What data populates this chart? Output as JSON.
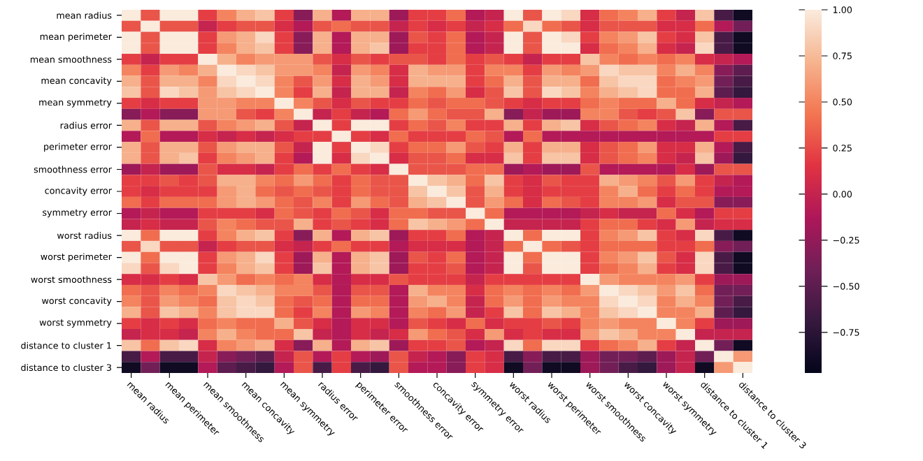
{
  "chart_data": {
    "type": "heatmap",
    "categories": [
      "mean radius",
      null,
      "mean perimeter",
      null,
      "mean smoothness",
      null,
      "mean concavity",
      null,
      "mean symmetry",
      null,
      "radius error",
      null,
      "perimeter error",
      null,
      "smoothness error",
      null,
      "concavity error",
      null,
      "symmetry error",
      null,
      "worst radius",
      null,
      "worst perimeter",
      null,
      "worst smoothness",
      null,
      "worst concavity",
      null,
      "worst symmetry",
      null,
      "distance to cluster 1",
      null,
      "distance to cluster 3"
    ],
    "y_categories": [
      "mean radius",
      null,
      "mean perimeter",
      null,
      "mean smoothness",
      null,
      "mean concavity",
      null,
      "mean symmetry",
      null,
      "radius error",
      null,
      "perimeter error",
      null,
      "smoothness error",
      null,
      "concavity error",
      null,
      "symmetry error",
      null,
      "worst radius",
      null,
      "worst perimeter",
      null,
      "worst smoothness",
      null,
      "worst concavity",
      null,
      "worst symmetry",
      null,
      "distance to cluster 1",
      null,
      "distance to cluster 3"
    ],
    "cells": [
      [
        1,
        0.3,
        1,
        1,
        0.2,
        0.5,
        0.7,
        0.8,
        0.2,
        -0.3,
        0.7,
        -0.1,
        0.7,
        0.7,
        -0.2,
        0.2,
        0.2,
        0.4,
        -0.1,
        0,
        1,
        0.3,
        1,
        0.9,
        0.1,
        0.4,
        0.5,
        0.7,
        0.2,
        0,
        0.8,
        -0.6,
        -0.9
      ],
      [
        0.3,
        1,
        0.3,
        0.3,
        0,
        0.2,
        0.3,
        0.3,
        0.1,
        -0.1,
        0.3,
        0.4,
        0.3,
        0.3,
        0,
        0.2,
        0.1,
        0.2,
        0,
        0.1,
        0.4,
        0.9,
        0.4,
        0.3,
        0.1,
        0.3,
        0.3,
        0.3,
        0.1,
        0.1,
        0.4,
        -0.1,
        -0.4
      ],
      [
        1,
        0.3,
        1,
        1,
        0.2,
        0.6,
        0.7,
        0.9,
        0.2,
        -0.3,
        0.7,
        -0.1,
        0.7,
        0.7,
        -0.2,
        0.3,
        0.2,
        0.4,
        -0.1,
        0,
        1,
        0.3,
        1,
        0.9,
        0.2,
        0.5,
        0.6,
        0.8,
        0.2,
        0.1,
        0.8,
        -0.6,
        -0.9
      ],
      [
        1,
        0.3,
        1,
        1,
        0.2,
        0.5,
        0.7,
        0.8,
        0.2,
        -0.3,
        0.7,
        -0.1,
        0.7,
        0.8,
        -0.2,
        0.2,
        0.2,
        0.4,
        -0.1,
        0,
        1,
        0.3,
        1,
        1,
        0.1,
        0.4,
        0.5,
        0.7,
        0.1,
        0,
        0.9,
        -0.6,
        -0.9
      ],
      [
        0.2,
        0,
        0.2,
        0.2,
        1,
        0.7,
        0.5,
        0.6,
        0.6,
        0.6,
        0.3,
        0.1,
        0.3,
        0.2,
        0.3,
        0.3,
        0.2,
        0.4,
        0.2,
        0.3,
        0.2,
        0,
        0.2,
        0.2,
        0.8,
        0.5,
        0.4,
        0.5,
        0.4,
        0.5,
        0.1,
        0,
        -0.1
      ],
      [
        0.5,
        0.2,
        0.6,
        0.5,
        0.7,
        1,
        0.9,
        0.8,
        0.6,
        0.6,
        0.5,
        0,
        0.6,
        0.5,
        0.1,
        0.7,
        0.6,
        0.6,
        0.2,
        0.5,
        0.5,
        0.2,
        0.6,
        0.5,
        0.6,
        0.9,
        0.8,
        0.8,
        0.5,
        0.7,
        0.5,
        -0.3,
        -0.5
      ],
      [
        0.7,
        0.3,
        0.7,
        0.7,
        0.5,
        0.9,
        1,
        0.9,
        0.5,
        0.3,
        0.6,
        0.1,
        0.7,
        0.6,
        0.1,
        0.7,
        0.7,
        0.7,
        0.2,
        0.4,
        0.7,
        0.3,
        0.7,
        0.7,
        0.4,
        0.8,
        0.9,
        0.9,
        0.4,
        0.5,
        0.6,
        -0.4,
        -0.6
      ],
      [
        0.8,
        0.3,
        0.9,
        0.8,
        0.6,
        0.8,
        0.9,
        1,
        0.5,
        0.2,
        0.7,
        0,
        0.7,
        0.7,
        0,
        0.5,
        0.4,
        0.6,
        0.1,
        0.3,
        0.8,
        0.3,
        0.9,
        0.8,
        0.5,
        0.7,
        0.8,
        0.9,
        0.4,
        0.4,
        0.7,
        -0.5,
        -0.7
      ],
      [
        0.2,
        0.1,
        0.2,
        0.2,
        0.6,
        0.6,
        0.5,
        0.5,
        1,
        0.5,
        0.3,
        0.1,
        0.3,
        0.2,
        0.2,
        0.4,
        0.3,
        0.4,
        0.4,
        0.3,
        0.2,
        0.1,
        0.2,
        0.2,
        0.4,
        0.5,
        0.4,
        0.4,
        0.7,
        0.4,
        0.1,
        0,
        -0.1
      ],
      [
        -0.3,
        -0.1,
        -0.3,
        -0.3,
        0.6,
        0.6,
        0.3,
        0.2,
        0.5,
        1,
        0,
        0.2,
        0,
        -0.1,
        0.4,
        0.6,
        0.4,
        0.3,
        0.3,
        0.7,
        -0.3,
        0,
        -0.2,
        -0.2,
        0.5,
        0.5,
        0.3,
        0.2,
        0.3,
        0.8,
        -0.3,
        0.3,
        0.3
      ],
      [
        0.7,
        0.3,
        0.7,
        0.7,
        0.3,
        0.5,
        0.6,
        0.7,
        0.3,
        0,
        1,
        0.2,
        1,
        1,
        0.2,
        0.4,
        0.3,
        0.5,
        0.2,
        0.2,
        0.7,
        0.2,
        0.7,
        0.8,
        0.1,
        0.3,
        0.4,
        0.5,
        0.1,
        0,
        0.7,
        -0.1,
        -0.6
      ],
      [
        -0.1,
        0.4,
        -0.1,
        -0.1,
        0.1,
        0,
        0.1,
        0,
        0.1,
        0.2,
        0.2,
        1,
        0.2,
        0.1,
        0.4,
        0.2,
        0.2,
        0.2,
        0.4,
        0.3,
        -0.1,
        0.4,
        -0.1,
        -0.1,
        -0.1,
        -0.1,
        -0.1,
        -0.1,
        -0.1,
        -0.1,
        -0.1,
        0.2,
        0.2
      ],
      [
        0.7,
        0.3,
        0.7,
        0.7,
        0.3,
        0.6,
        0.7,
        0.7,
        0.3,
        0,
        1,
        0.2,
        1,
        0.9,
        0.2,
        0.4,
        0.4,
        0.6,
        0.3,
        0.2,
        0.7,
        0.2,
        0.7,
        0.7,
        0.1,
        0.3,
        0.4,
        0.6,
        0.1,
        0.1,
        0.7,
        -0.1,
        -0.6
      ],
      [
        0.7,
        0.3,
        0.7,
        0.8,
        0.2,
        0.5,
        0.6,
        0.7,
        0.2,
        -0.1,
        1,
        0.1,
        0.9,
        1,
        0.1,
        0.3,
        0.3,
        0.4,
        0.1,
        0.1,
        0.8,
        0.2,
        0.8,
        0.8,
        0.1,
        0.3,
        0.4,
        0.5,
        0.1,
        0,
        0.8,
        -0.2,
        -0.7
      ],
      [
        -0.2,
        0,
        -0.2,
        -0.2,
        0.3,
        0.1,
        0.1,
        0,
        0.2,
        0.4,
        0.2,
        0.4,
        0.2,
        0.1,
        1,
        0.3,
        0.3,
        0.3,
        0.4,
        0.4,
        -0.2,
        -0.1,
        -0.2,
        -0.2,
        0.3,
        -0.1,
        -0.1,
        -0.1,
        -0.1,
        0.1,
        -0.2,
        0.3,
        0.3
      ],
      [
        0.2,
        0.2,
        0.3,
        0.2,
        0.3,
        0.7,
        0.7,
        0.5,
        0.4,
        0.6,
        0.4,
        0.2,
        0.4,
        0.3,
        0.3,
        1,
        0.8,
        0.7,
        0.4,
        0.8,
        0.2,
        0.1,
        0.3,
        0.2,
        0.2,
        0.7,
        0.6,
        0.5,
        0.3,
        0.6,
        0.2,
        0,
        -0.1
      ],
      [
        0.2,
        0.1,
        0.2,
        0.2,
        0.2,
        0.6,
        0.7,
        0.4,
        0.3,
        0.4,
        0.3,
        0.2,
        0.4,
        0.3,
        0.3,
        0.8,
        1,
        0.8,
        0.3,
        0.7,
        0.2,
        0.1,
        0.2,
        0.2,
        0.2,
        0.5,
        0.7,
        0.4,
        0.2,
        0.4,
        0.2,
        -0.1,
        -0.1
      ],
      [
        0.4,
        0.2,
        0.4,
        0.4,
        0.4,
        0.6,
        0.7,
        0.6,
        0.4,
        0.3,
        0.5,
        0.2,
        0.6,
        0.4,
        0.3,
        0.7,
        0.8,
        1,
        0.3,
        0.6,
        0.4,
        0.1,
        0.4,
        0.3,
        0.2,
        0.5,
        0.5,
        0.6,
        0.1,
        0.3,
        0.3,
        -0.3,
        -0.3
      ],
      [
        -0.1,
        0,
        -0.1,
        -0.1,
        0.2,
        0.2,
        0.2,
        0.1,
        0.4,
        0.3,
        0.2,
        0.4,
        0.3,
        0.1,
        0.4,
        0.4,
        0.3,
        0.3,
        1,
        0.4,
        -0.1,
        -0.1,
        -0.1,
        -0.1,
        0,
        0.1,
        0,
        0,
        0.4,
        0.1,
        -0.1,
        0.2,
        0.2
      ],
      [
        0,
        0.1,
        0,
        0,
        0.3,
        0.5,
        0.4,
        0.3,
        0.3,
        0.7,
        0.2,
        0.3,
        0.2,
        0.1,
        0.4,
        0.8,
        0.7,
        0.6,
        0.4,
        1,
        0,
        0,
        0,
        0,
        0.2,
        0.4,
        0.4,
        0.2,
        0.1,
        0.6,
        0,
        0.1,
        0.1
      ],
      [
        1,
        0.4,
        1,
        1,
        0.2,
        0.5,
        0.7,
        0.8,
        0.2,
        -0.3,
        0.7,
        -0.1,
        0.7,
        0.8,
        -0.2,
        0.2,
        0.2,
        0.4,
        -0.1,
        0,
        1,
        0.4,
        1,
        1,
        0.2,
        0.5,
        0.6,
        0.8,
        0.2,
        0.1,
        0.9,
        -0.6,
        -0.9
      ],
      [
        0.3,
        0.9,
        0.3,
        0.3,
        0,
        0.2,
        0.3,
        0.3,
        0.1,
        0,
        0.2,
        0.4,
        0.2,
        0.2,
        -0.1,
        0.1,
        0.1,
        0.1,
        -0.1,
        0,
        0.4,
        1,
        0.4,
        0.3,
        0.2,
        0.4,
        0.4,
        0.4,
        0.2,
        0.2,
        0.4,
        -0.3,
        -0.4
      ],
      [
        1,
        0.4,
        1,
        1,
        0.2,
        0.6,
        0.7,
        0.9,
        0.2,
        -0.2,
        0.7,
        -0.1,
        0.7,
        0.8,
        -0.2,
        0.3,
        0.2,
        0.4,
        -0.1,
        0,
        1,
        0.4,
        1,
        1,
        0.2,
        0.5,
        0.6,
        0.8,
        0.3,
        0.1,
        0.9,
        -0.6,
        -0.9
      ],
      [
        0.9,
        0.3,
        0.9,
        1,
        0.2,
        0.5,
        0.7,
        0.8,
        0.2,
        -0.2,
        0.8,
        -0.1,
        0.7,
        0.8,
        -0.2,
        0.2,
        0.2,
        0.3,
        -0.1,
        0,
        1,
        0.3,
        1,
        1,
        0.2,
        0.4,
        0.5,
        0.7,
        0.2,
        0.1,
        0.9,
        -0.6,
        -0.9
      ],
      [
        0.1,
        0.1,
        0.2,
        0.1,
        0.8,
        0.6,
        0.4,
        0.5,
        0.4,
        0.5,
        0.1,
        -0.1,
        0.1,
        0.1,
        0.3,
        0.2,
        0.2,
        0.2,
        0,
        0.2,
        0.2,
        0.2,
        0.2,
        0.2,
        1,
        0.6,
        0.5,
        0.5,
        0.5,
        0.6,
        0.2,
        -0.2,
        -0.2
      ],
      [
        0.4,
        0.3,
        0.5,
        0.4,
        0.5,
        0.9,
        0.8,
        0.7,
        0.5,
        0.5,
        0.3,
        -0.1,
        0.3,
        0.3,
        -0.1,
        0.7,
        0.5,
        0.5,
        0.1,
        0.4,
        0.5,
        0.4,
        0.5,
        0.4,
        0.6,
        1,
        0.9,
        0.8,
        0.6,
        0.8,
        0.4,
        -0.4,
        -0.4
      ],
      [
        0.5,
        0.3,
        0.6,
        0.5,
        0.4,
        0.8,
        0.9,
        0.8,
        0.4,
        0.3,
        0.4,
        -0.1,
        0.4,
        0.4,
        -0.1,
        0.6,
        0.7,
        0.5,
        0,
        0.4,
        0.6,
        0.4,
        0.6,
        0.5,
        0.5,
        0.9,
        1,
        0.9,
        0.5,
        0.7,
        0.5,
        -0.4,
        -0.6
      ],
      [
        0.7,
        0.3,
        0.8,
        0.7,
        0.5,
        0.8,
        0.9,
        0.9,
        0.4,
        0.2,
        0.5,
        -0.1,
        0.6,
        0.5,
        -0.1,
        0.5,
        0.4,
        0.6,
        0,
        0.2,
        0.8,
        0.4,
        0.8,
        0.7,
        0.5,
        0.8,
        0.9,
        1,
        0.5,
        0.5,
        0.7,
        -0.5,
        -0.7
      ],
      [
        0.2,
        0.1,
        0.2,
        0.1,
        0.4,
        0.5,
        0.4,
        0.4,
        0.7,
        0.3,
        0.1,
        -0.1,
        0.1,
        0.1,
        -0.1,
        0.3,
        0.2,
        0.1,
        0.4,
        0.1,
        0.2,
        0.2,
        0.3,
        0.2,
        0.5,
        0.6,
        0.5,
        0.5,
        1,
        0.5,
        0.2,
        -0.2,
        -0.2
      ],
      [
        0,
        0.1,
        0.1,
        0,
        0.5,
        0.7,
        0.5,
        0.4,
        0.4,
        0.8,
        0,
        -0.1,
        0.1,
        0,
        0.1,
        0.6,
        0.4,
        0.3,
        0.1,
        0.6,
        0.1,
        0.2,
        0.1,
        0.1,
        0.6,
        0.8,
        0.7,
        0.5,
        0.5,
        1,
        0,
        0,
        0
      ],
      [
        0.8,
        0.4,
        0.8,
        0.9,
        0.1,
        0.5,
        0.6,
        0.7,
        0.1,
        -0.3,
        0.7,
        -0.1,
        0.7,
        0.8,
        -0.2,
        0.2,
        0.2,
        0.3,
        -0.1,
        0,
        0.9,
        0.4,
        0.9,
        0.9,
        0.2,
        0.4,
        0.5,
        0.7,
        0.2,
        0,
        1,
        -0.4,
        -0.9
      ],
      [
        -0.6,
        -0.1,
        -0.6,
        -0.6,
        0,
        -0.3,
        -0.4,
        -0.5,
        0,
        0.3,
        -0.1,
        0.2,
        -0.1,
        -0.2,
        0.3,
        0,
        -0.1,
        -0.3,
        0.2,
        0.1,
        -0.6,
        -0.3,
        -0.6,
        -0.6,
        -0.2,
        -0.4,
        -0.4,
        -0.5,
        -0.2,
        0,
        -0.4,
        1,
        0.6
      ],
      [
        -0.9,
        -0.4,
        -0.9,
        -0.9,
        -0.1,
        -0.5,
        -0.6,
        -0.7,
        -0.1,
        0.3,
        -0.6,
        0.2,
        -0.6,
        -0.7,
        0.3,
        -0.1,
        -0.1,
        -0.3,
        0.2,
        0.1,
        -0.9,
        -0.4,
        -0.9,
        -0.9,
        -0.2,
        -0.4,
        -0.6,
        -0.7,
        -0.2,
        0,
        -0.9,
        0.6,
        1
      ]
    ],
    "clim": [
      -0.97,
      1
    ],
    "cticks": [
      {
        "value": -0.75,
        "label": "−0.75"
      },
      {
        "value": -0.5,
        "label": "−0.50"
      },
      {
        "value": -0.25,
        "label": "−0.25"
      },
      {
        "value": 0,
        "label": "0.00"
      },
      {
        "value": 0.25,
        "label": "0.25"
      },
      {
        "value": 0.5,
        "label": "0.50"
      },
      {
        "value": 0.75,
        "label": "0.75"
      },
      {
        "value": 1,
        "label": "1.00"
      }
    ]
  }
}
